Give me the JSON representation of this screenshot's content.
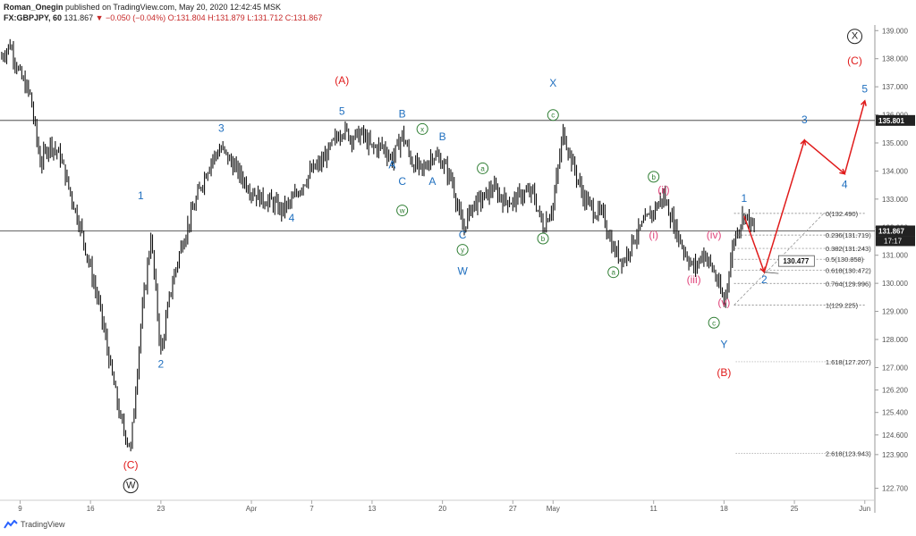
{
  "header": {
    "publisher": "Roman_Onegin",
    "published_text": "published on TradingView.com, May 20, 2020 12:42:45 MSK",
    "symbol": "FX:GBPJPY, 60",
    "last": "131.867",
    "change_text": "▼ −0.050 (−0.04%)",
    "ohlc": {
      "o": "O:131.804",
      "h": "H:131.879",
      "l": "L:131.712",
      "c": "C:131.867"
    }
  },
  "footer": {
    "brand": "TradingView"
  },
  "colors": {
    "red": "#e01b1b",
    "blue": "#1f6fbf",
    "green": "#2e7d32",
    "pink": "#e0457b",
    "candle": "#111111",
    "axis": "#555555"
  },
  "chart_data": {
    "type": "line",
    "instrument": "GBPJPY",
    "timeframe": "60",
    "ylim": [
      122.4,
      139.2
    ],
    "xlim": [
      "2020-03-07",
      "2020-06-02"
    ],
    "y_ticks": [
      "122.700",
      "123.900",
      "124.600",
      "125.400",
      "126.200",
      "127.000",
      "128.000",
      "129.000",
      "130.000",
      "131.000",
      "132.000",
      "133.000",
      "134.000",
      "135.000",
      "136.000",
      "137.000",
      "138.000",
      "139.000"
    ],
    "x_ticks": [
      {
        "label": "9",
        "date": "2020-03-09"
      },
      {
        "label": "16",
        "date": "2020-03-16"
      },
      {
        "label": "23",
        "date": "2020-03-23"
      },
      {
        "label": "Apr",
        "date": "2020-04-01"
      },
      {
        "label": "7",
        "date": "2020-04-07"
      },
      {
        "label": "13",
        "date": "2020-04-13"
      },
      {
        "label": "20",
        "date": "2020-04-20"
      },
      {
        "label": "27",
        "date": "2020-04-27"
      },
      {
        "label": "May",
        "date": "2020-05-01"
      },
      {
        "label": "11",
        "date": "2020-05-11"
      },
      {
        "label": "18",
        "date": "2020-05-18"
      },
      {
        "label": "25",
        "date": "2020-05-25"
      },
      {
        "label": "Jun",
        "date": "2020-06-01"
      }
    ],
    "price_path": [
      [
        "2020-03-07",
        138.0
      ],
      [
        "2020-03-08",
        138.5
      ],
      [
        "2020-03-09",
        137.4
      ],
      [
        "2020-03-10",
        136.7
      ],
      [
        "2020-03-11",
        134.3
      ],
      [
        "2020-03-12",
        135.0
      ],
      [
        "2020-03-13",
        134.5
      ],
      [
        "2020-03-14",
        133.2
      ],
      [
        "2020-03-15",
        132.0
      ],
      [
        "2020-03-16",
        130.5
      ],
      [
        "2020-03-17",
        129.0
      ],
      [
        "2020-03-18",
        127.0
      ],
      [
        "2020-03-19",
        125.1
      ],
      [
        "2020-03-20",
        124.1
      ],
      [
        "2020-03-21",
        128.5
      ],
      [
        "2020-03-22",
        131.7
      ],
      [
        "2020-03-23",
        127.5
      ],
      [
        "2020-03-24",
        129.8
      ],
      [
        "2020-03-25",
        131.3
      ],
      [
        "2020-03-26",
        132.4
      ],
      [
        "2020-03-27",
        133.5
      ],
      [
        "2020-03-28",
        134.4
      ],
      [
        "2020-03-29",
        134.8
      ],
      [
        "2020-03-30",
        134.3
      ],
      [
        "2020-03-31",
        133.8
      ],
      [
        "2020-04-01",
        133.3
      ],
      [
        "2020-04-02",
        133.0
      ],
      [
        "2020-04-03",
        132.9
      ],
      [
        "2020-04-04",
        132.6
      ],
      [
        "2020-04-05",
        132.9
      ],
      [
        "2020-04-06",
        133.5
      ],
      [
        "2020-04-07",
        134.0
      ],
      [
        "2020-04-08",
        134.3
      ],
      [
        "2020-04-09",
        134.9
      ],
      [
        "2020-04-10",
        135.5
      ],
      [
        "2020-04-11",
        135.2
      ],
      [
        "2020-04-12",
        135.3
      ],
      [
        "2020-04-13",
        134.8
      ],
      [
        "2020-04-14",
        134.9
      ],
      [
        "2020-04-15",
        134.4
      ],
      [
        "2020-04-16",
        135.3
      ],
      [
        "2020-04-17",
        134.3
      ],
      [
        "2020-04-18",
        134.0
      ],
      [
        "2020-04-19",
        134.6
      ],
      [
        "2020-04-20",
        134.3
      ],
      [
        "2020-04-21",
        133.6
      ],
      [
        "2020-04-22",
        131.9
      ],
      [
        "2020-04-23",
        132.8
      ],
      [
        "2020-04-24",
        133.0
      ],
      [
        "2020-04-25",
        133.4
      ],
      [
        "2020-04-26",
        133.0
      ],
      [
        "2020-04-27",
        132.9
      ],
      [
        "2020-04-28",
        133.2
      ],
      [
        "2020-04-29",
        133.2
      ],
      [
        "2020-04-30",
        132.0
      ],
      [
        "2020-05-01",
        132.8
      ],
      [
        "2020-05-02",
        135.4
      ],
      [
        "2020-05-03",
        134.2
      ],
      [
        "2020-05-04",
        133.1
      ],
      [
        "2020-05-05",
        132.6
      ],
      [
        "2020-05-06",
        132.4
      ],
      [
        "2020-05-07",
        131.2
      ],
      [
        "2020-05-08",
        130.8
      ],
      [
        "2020-05-09",
        131.6
      ],
      [
        "2020-05-10",
        132.1
      ],
      [
        "2020-05-11",
        132.6
      ],
      [
        "2020-05-12",
        133.1
      ],
      [
        "2020-05-13",
        132.1
      ],
      [
        "2020-05-14",
        131.2
      ],
      [
        "2020-05-15",
        130.5
      ],
      [
        "2020-05-16",
        131.1
      ],
      [
        "2020-05-17",
        130.4
      ],
      [
        "2020-05-18",
        129.3
      ],
      [
        "2020-05-19",
        131.6
      ],
      [
        "2020-05-20",
        132.5
      ],
      [
        "2020-05-21",
        131.9
      ]
    ],
    "horizontal_lines": [
      {
        "price": 135.801,
        "label": "135.801"
      },
      {
        "price": 131.867,
        "label": "131.867",
        "sublabel": "17:17"
      }
    ],
    "fibonacci": {
      "from_date": "2020-05-19",
      "to_date": "2020-05-24",
      "levels": [
        {
          "price": 132.49,
          "label": "0(132.490)"
        },
        {
          "price": 131.719,
          "label": "0.236(131.719)"
        },
        {
          "price": 131.243,
          "label": "0.382(131.243)"
        },
        {
          "price": 130.858,
          "label": "0.5(130.858)"
        },
        {
          "price": 130.472,
          "label": "0.618(130.472)"
        },
        {
          "price": 129.996,
          "label": "0.764(129.996)"
        },
        {
          "price": 129.225,
          "label": "1(129.225)"
        },
        {
          "price": 127.207,
          "label": "1.618(127.207)"
        },
        {
          "price": 123.943,
          "label": "2.618(123.943)"
        }
      ]
    },
    "projection": [
      [
        "2020-05-20",
        132.4
      ],
      [
        "2020-05-22",
        130.4
      ],
      [
        "2020-05-26",
        135.1
      ],
      [
        "2020-05-30",
        133.9
      ],
      [
        "2020-06-01",
        136.5
      ]
    ],
    "projection_target": {
      "date": "2020-05-22",
      "price": 130.477,
      "label": "130.477"
    },
    "wave_labels": [
      {
        "text": "(A)",
        "date": "2020-04-10",
        "price": 137.1,
        "color": "red",
        "circle": false
      },
      {
        "text": "(B)",
        "date": "2020-05-18",
        "price": 126.7,
        "color": "red",
        "circle": false
      },
      {
        "text": "(C)",
        "date": "2020-05-31",
        "price": 137.8,
        "color": "red",
        "circle": false
      },
      {
        "text": "(C)",
        "date": "2020-03-20",
        "price": 123.4,
        "color": "red",
        "circle": false
      },
      {
        "text": "W",
        "date": "2020-03-20",
        "price": 122.7,
        "color": "dark",
        "circle": true
      },
      {
        "text": "X",
        "date": "2020-05-31",
        "price": 138.7,
        "color": "dark",
        "circle": true
      },
      {
        "text": "1",
        "date": "2020-03-21",
        "price": 133.0,
        "color": "blue",
        "circle": false
      },
      {
        "text": "2",
        "date": "2020-03-23",
        "price": 127.0,
        "color": "blue",
        "circle": false
      },
      {
        "text": "3",
        "date": "2020-03-29",
        "price": 135.4,
        "color": "blue",
        "circle": false
      },
      {
        "text": "4",
        "date": "2020-04-05",
        "price": 132.2,
        "color": "blue",
        "circle": false
      },
      {
        "text": "5",
        "date": "2020-04-10",
        "price": 136.0,
        "color": "blue",
        "circle": false
      },
      {
        "text": "A",
        "date": "2020-04-15",
        "price": 134.1,
        "color": "blue",
        "circle": false
      },
      {
        "text": "B",
        "date": "2020-04-16",
        "price": 135.9,
        "color": "blue",
        "circle": false
      },
      {
        "text": "C",
        "date": "2020-04-16",
        "price": 133.5,
        "color": "blue",
        "circle": false
      },
      {
        "text": "A",
        "date": "2020-04-19",
        "price": 133.5,
        "color": "blue",
        "circle": false
      },
      {
        "text": "B",
        "date": "2020-04-20",
        "price": 135.1,
        "color": "blue",
        "circle": false
      },
      {
        "text": "C",
        "date": "2020-04-22",
        "price": 131.6,
        "color": "blue",
        "circle": false
      },
      {
        "text": "W",
        "date": "2020-04-22",
        "price": 130.3,
        "color": "blue",
        "circle": false
      },
      {
        "text": "X",
        "date": "2020-05-01",
        "price": 137.0,
        "color": "blue",
        "circle": false
      },
      {
        "text": "Y",
        "date": "2020-05-18",
        "price": 127.7,
        "color": "blue",
        "circle": false
      },
      {
        "text": "1",
        "date": "2020-05-20",
        "price": 132.9,
        "color": "blue",
        "circle": false
      },
      {
        "text": "2",
        "date": "2020-05-22",
        "price": 130.0,
        "color": "blue",
        "circle": false
      },
      {
        "text": "3",
        "date": "2020-05-26",
        "price": 135.7,
        "color": "blue",
        "circle": false
      },
      {
        "text": "4",
        "date": "2020-05-30",
        "price": 133.4,
        "color": "blue",
        "circle": false
      },
      {
        "text": "5",
        "date": "2020-06-01",
        "price": 136.8,
        "color": "blue",
        "circle": false
      },
      {
        "text": "x",
        "date": "2020-04-18",
        "price": 135.4,
        "color": "green",
        "circle": true
      },
      {
        "text": "w",
        "date": "2020-04-16",
        "price": 132.5,
        "color": "green",
        "circle": true
      },
      {
        "text": "a",
        "date": "2020-04-24",
        "price": 134.0,
        "color": "green",
        "circle": true
      },
      {
        "text": "y",
        "date": "2020-04-22",
        "price": 131.1,
        "color": "green",
        "circle": true
      },
      {
        "text": "b",
        "date": "2020-04-30",
        "price": 131.5,
        "color": "green",
        "circle": true
      },
      {
        "text": "c",
        "date": "2020-05-01",
        "price": 135.9,
        "color": "green",
        "circle": true
      },
      {
        "text": "a",
        "date": "2020-05-07",
        "price": 130.3,
        "color": "green",
        "circle": true
      },
      {
        "text": "b",
        "date": "2020-05-11",
        "price": 133.7,
        "color": "green",
        "circle": true
      },
      {
        "text": "c",
        "date": "2020-05-17",
        "price": 128.5,
        "color": "green",
        "circle": true
      },
      {
        "text": "(i)",
        "date": "2020-05-11",
        "price": 131.6,
        "color": "pink",
        "circle": false
      },
      {
        "text": "(ii)",
        "date": "2020-05-12",
        "price": 133.2,
        "color": "pink",
        "circle": false
      },
      {
        "text": "(iii)",
        "date": "2020-05-15",
        "price": 130.0,
        "color": "pink",
        "circle": false
      },
      {
        "text": "(iv)",
        "date": "2020-05-17",
        "price": 131.6,
        "color": "pink",
        "circle": false
      },
      {
        "text": "(v)",
        "date": "2020-05-18",
        "price": 129.2,
        "color": "pink",
        "circle": false
      }
    ]
  }
}
